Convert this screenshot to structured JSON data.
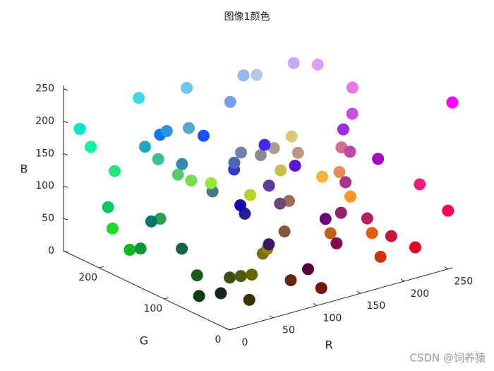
{
  "chart_data": {
    "type": "scatter3d",
    "title": "图像1颜色",
    "xlabel": "R",
    "ylabel": "G",
    "zlabel": "B",
    "xlim": [
      0,
      255
    ],
    "ylim": [
      0,
      255
    ],
    "zlim": [
      0,
      255
    ],
    "xticks": [
      0,
      50,
      100,
      150,
      200,
      250
    ],
    "yticks": [
      0,
      100,
      200
    ],
    "zticks": [
      0,
      50,
      100,
      150,
      200,
      250
    ],
    "x": [
      255,
      250,
      220,
      240,
      200,
      210,
      230,
      190,
      180,
      170,
      160,
      200,
      230,
      220,
      200,
      180,
      150,
      120,
      100,
      60,
      0,
      20,
      40,
      10,
      30,
      20,
      10,
      40,
      0,
      20,
      30,
      10,
      20,
      60,
      80,
      100,
      120,
      140,
      60,
      100,
      120,
      90,
      60,
      40,
      20,
      50,
      80,
      110,
      140,
      170,
      190,
      150,
      130,
      110,
      90,
      70,
      50,
      30,
      60,
      90,
      120,
      150,
      180,
      200,
      220,
      240,
      250,
      230,
      210,
      190,
      170,
      150,
      130,
      110,
      90,
      70,
      30,
      10,
      40,
      80
    ],
    "y": [
      0,
      0,
      10,
      30,
      20,
      50,
      90,
      100,
      30,
      0,
      40,
      80,
      120,
      160,
      170,
      200,
      180,
      160,
      200,
      220,
      230,
      240,
      230,
      200,
      220,
      180,
      150,
      160,
      120,
      100,
      90,
      60,
      40,
      80,
      90,
      100,
      110,
      130,
      50,
      40,
      20,
      0,
      20,
      30,
      10,
      60,
      100,
      130,
      140,
      160,
      150,
      110,
      90,
      70,
      60,
      120,
      140,
      170,
      190,
      200,
      220,
      230,
      210,
      190,
      200,
      180,
      150,
      140,
      110,
      70,
      50,
      30,
      10,
      0,
      20,
      40,
      80,
      120,
      150,
      170
    ],
    "z": [
      255,
      90,
      40,
      120,
      60,
      10,
      20,
      30,
      90,
      200,
      230,
      220,
      230,
      250,
      255,
      230,
      250,
      230,
      240,
      230,
      200,
      160,
      120,
      90,
      40,
      30,
      50,
      80,
      110,
      70,
      30,
      20,
      30,
      20,
      10,
      0,
      20,
      10,
      0,
      20,
      10,
      60,
      100,
      150,
      180,
      200,
      180,
      170,
      150,
      140,
      130,
      90,
      60,
      120,
      160,
      130,
      170,
      190,
      150,
      110,
      80,
      60,
      40,
      80,
      120,
      60,
      40,
      90,
      150,
      170,
      140,
      110,
      80,
      130,
      210,
      240,
      250,
      240,
      220,
      200
    ],
    "watermark": "CSDN @饲养猿"
  }
}
